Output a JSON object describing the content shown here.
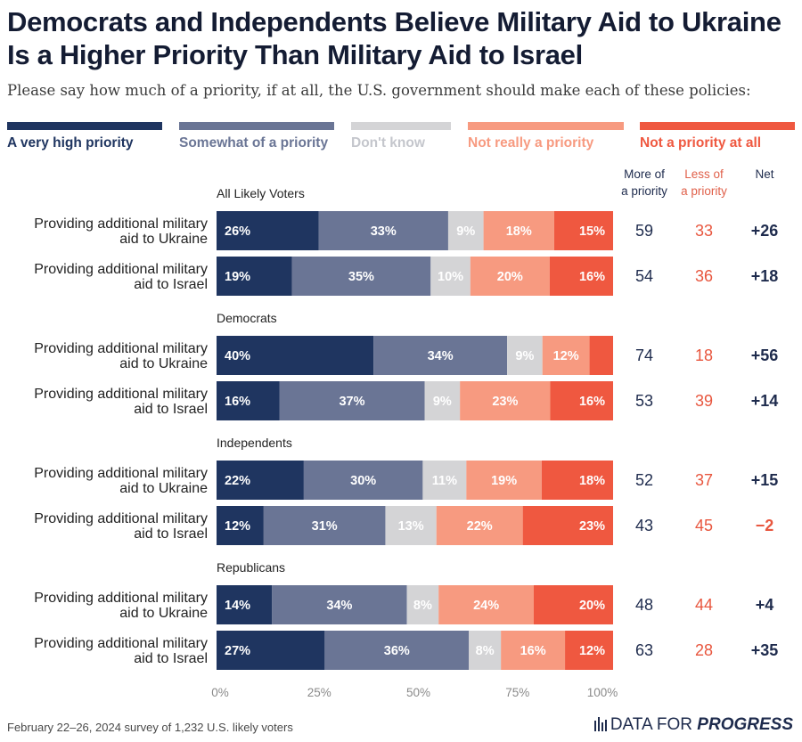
{
  "header": {
    "title": "Democrats and Independents Believe Military Aid to Ukraine Is a Higher Priority Than Military Aid to Israel",
    "subtitle": "Please say how much of a priority, if at all, the U.S. government should make each of these policies:"
  },
  "legend": [
    {
      "label": "A very high priority",
      "color": "#1f3560"
    },
    {
      "label": "Somewhat of a priority",
      "color": "#6a7595"
    },
    {
      "label": "Don't know",
      "color": "#d4d4d6"
    },
    {
      "label": "Not really a priority",
      "color": "#f79a80"
    },
    {
      "label": "Not a priority at all",
      "color": "#ef5840"
    }
  ],
  "columns": {
    "more": "More of a priority",
    "less": "Less of a priority",
    "net": "Net"
  },
  "chart_data": {
    "type": "stacked-bar-horizontal",
    "categories": [
      "A very high priority",
      "Somewhat of a priority",
      "Don't know",
      "Not really a priority",
      "Not a priority at all"
    ],
    "xlim": [
      0,
      100
    ],
    "xticks": [
      "0%",
      "25%",
      "50%",
      "75%",
      "100%"
    ],
    "groups": [
      {
        "name": "All Likely Voters",
        "rows": [
          {
            "label": "Providing additional military aid to Ukraine",
            "values": [
              26,
              33,
              9,
              18,
              15
            ],
            "labels": [
              "26%",
              "33%",
              "9%",
              "18%",
              "15%"
            ],
            "more": "59",
            "less": "33",
            "net": "+26"
          },
          {
            "label": "Providing additional military aid to Israel",
            "values": [
              19,
              35,
              10,
              20,
              16
            ],
            "labels": [
              "19%",
              "35%",
              "10%",
              "20%",
              "16%"
            ],
            "more": "54",
            "less": "36",
            "net": "+18"
          }
        ]
      },
      {
        "name": "Democrats",
        "rows": [
          {
            "label": "Providing additional military aid to Ukraine",
            "values": [
              40,
              34,
              9,
              12,
              6
            ],
            "labels": [
              "40%",
              "34%",
              "9%",
              "12%",
              ""
            ],
            "more": "74",
            "less": "18",
            "net": "+56"
          },
          {
            "label": "Providing additional military aid to Israel",
            "values": [
              16,
              37,
              9,
              23,
              16
            ],
            "labels": [
              "16%",
              "37%",
              "9%",
              "23%",
              "16%"
            ],
            "more": "53",
            "less": "39",
            "net": "+14"
          }
        ]
      },
      {
        "name": "Independents",
        "rows": [
          {
            "label": "Providing additional military aid to Ukraine",
            "values": [
              22,
              30,
              11,
              19,
              18
            ],
            "labels": [
              "22%",
              "30%",
              "11%",
              "19%",
              "18%"
            ],
            "more": "52",
            "less": "37",
            "net": "+15"
          },
          {
            "label": "Providing additional military aid to Israel",
            "values": [
              12,
              31,
              13,
              22,
              23
            ],
            "labels": [
              "12%",
              "31%",
              "13%",
              "22%",
              "23%"
            ],
            "more": "43",
            "less": "45",
            "net": "−2"
          }
        ]
      },
      {
        "name": "Republicans",
        "rows": [
          {
            "label": "Providing additional military aid to Ukraine",
            "values": [
              14,
              34,
              8,
              24,
              20
            ],
            "labels": [
              "14%",
              "34%",
              "8%",
              "24%",
              "20%"
            ],
            "more": "48",
            "less": "44",
            "net": "+4"
          },
          {
            "label": "Providing additional military aid to Israel",
            "values": [
              27,
              36,
              8,
              16,
              12
            ],
            "labels": [
              "27%",
              "36%",
              "8%",
              "16%",
              "12%"
            ],
            "more": "63",
            "less": "28",
            "net": "+35"
          }
        ]
      }
    ]
  },
  "footer": {
    "source": "February 22–26, 2024 survey of 1,232 U.S. likely voters",
    "brand_plain": "DATA FOR ",
    "brand_bold": "PROGRESS"
  }
}
